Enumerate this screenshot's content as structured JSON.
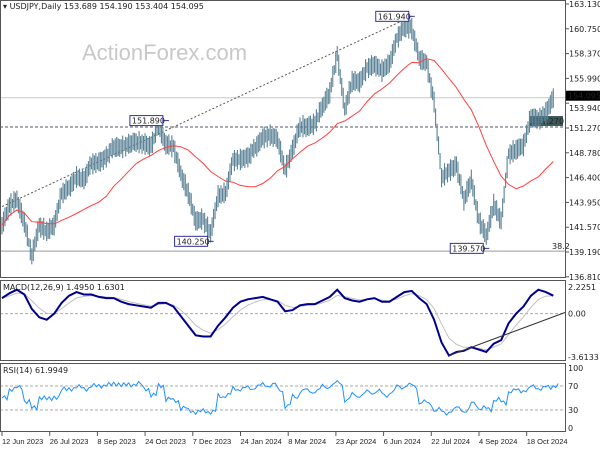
{
  "header": {
    "symbol": "USDJPY,Daily",
    "ohlc": "153.689 154.190 153.404 154.095"
  },
  "watermark": "ActionForex.com",
  "chart_data": [
    {
      "type": "bar",
      "title": "USDJPY,Daily",
      "ylim": [
        136.81,
        163.13
      ],
      "y_ticks": [
        "163.130",
        "160.750",
        "158.370",
        "155.990",
        "153.940",
        "151.270",
        "148.780",
        "146.400",
        "143.950",
        "141.570",
        "139.190",
        "136.810"
      ],
      "x_ticks": [
        "12 Jun 2023",
        "26 Jul 2023",
        "8 Sep 2023",
        "24 Oct 2023",
        "7 Dec 2023",
        "24 Jan 2024",
        "8 Mar 2024",
        "23 Apr 2024",
        "6 Jun 2024",
        "22 Jul 2024",
        "4 Sep 2024",
        "18 Oct 2024"
      ],
      "weekly_close": [
        141.8,
        143.7,
        144.3,
        142.1,
        138.8,
        141.8,
        141.2,
        141.8,
        144.9,
        145.4,
        146.4,
        146.2,
        147.8,
        147.8,
        148.4,
        149.4,
        149.3,
        149.6,
        149.9,
        149.7,
        149.4,
        151.5,
        149.6,
        149.4,
        146.8,
        144.9,
        142.2,
        142.4,
        141.0,
        144.6,
        144.9,
        148.1,
        148.1,
        148.4,
        149.3,
        150.2,
        150.5,
        150.1,
        147.1,
        149.1,
        151.4,
        151.3,
        151.6,
        153.3,
        154.6,
        158.3,
        153.0,
        155.7,
        155.6,
        157.0,
        157.3,
        156.7,
        157.4,
        159.8,
        160.9,
        160.8,
        157.9,
        157.4,
        153.7,
        146.5,
        147.0,
        147.6,
        144.3,
        146.2,
        142.3,
        140.8,
        143.8,
        142.2,
        148.7,
        149.1,
        149.5,
        152.3,
        152.0,
        152.6,
        154.1
      ],
      "last_price": "154.095",
      "horizontal_levels": [
        {
          "label": "151.270",
          "value": 151.27,
          "style": "dashed"
        },
        {
          "label": "38.2",
          "value": 139.3,
          "style": "solid"
        }
      ],
      "annotations": [
        {
          "label": "161.940",
          "value": 161.94,
          "week": 55
        },
        {
          "label": "151.890",
          "value": 151.89,
          "week": 22
        },
        {
          "label": "140.250",
          "value": 140.25,
          "week": 28
        },
        {
          "label": "139.570",
          "value": 139.57,
          "week": 65
        }
      ],
      "trendline": {
        "from": {
          "week": 0,
          "value": 143.6
        },
        "to": {
          "week": 55,
          "value": 161.94
        }
      },
      "moving_average_color": "#ff4040",
      "bar_color": "#5b8296"
    },
    {
      "type": "line",
      "title": "MACD(12,26,9) 1.4950 1.6301",
      "ylim": [
        -3.6133,
        2.2251
      ],
      "y_ticks": [
        "2.2251",
        "0.00",
        "-3.6133"
      ],
      "macd": [
        1.3,
        1.7,
        2.0,
        1.6,
        0.4,
        -0.3,
        -0.5,
        0.0,
        0.9,
        1.5,
        1.8,
        1.6,
        1.6,
        1.4,
        1.3,
        1.3,
        1.0,
        0.8,
        0.7,
        0.6,
        0.5,
        0.9,
        0.9,
        0.6,
        -0.2,
        -1.0,
        -1.8,
        -1.9,
        -1.9,
        -1.0,
        -0.3,
        0.5,
        1.0,
        1.2,
        1.3,
        1.4,
        1.2,
        1.0,
        0.2,
        0.3,
        0.7,
        0.8,
        0.8,
        1.1,
        1.4,
        2.0,
        1.3,
        1.1,
        1.0,
        1.2,
        1.3,
        1.0,
        1.0,
        1.4,
        1.8,
        1.9,
        1.3,
        0.8,
        -0.5,
        -2.4,
        -3.5,
        -3.2,
        -3.1,
        -2.8,
        -3.0,
        -3.2,
        -2.5,
        -2.2,
        -0.8,
        0.0,
        0.6,
        1.5,
        2.0,
        1.8,
        1.5
      ],
      "trendline": {
        "from": {
          "week": 60,
          "value": -3.5
        },
        "to": {
          "week": 75,
          "value": 0.1
        }
      },
      "macd_color": "#00008b",
      "signal_color": "#c0c0c0"
    },
    {
      "type": "line",
      "title": "RSI(14) 61.9949",
      "ylim": [
        0,
        100
      ],
      "y_ticks": [
        "100",
        "70",
        "30",
        "0"
      ],
      "color": "#1e90ff"
    }
  ]
}
